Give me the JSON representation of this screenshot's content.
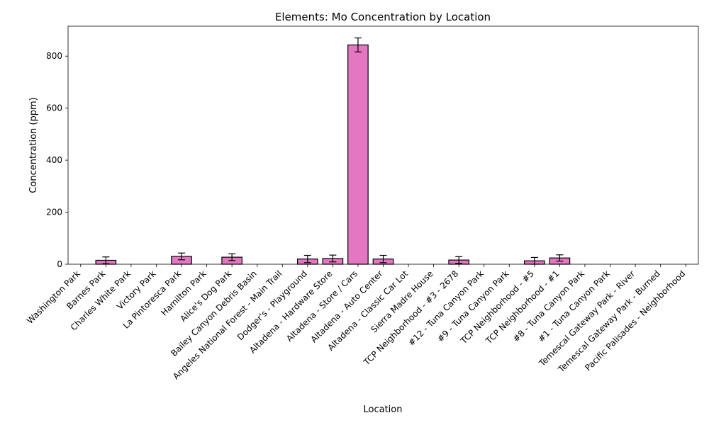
{
  "chart_data": {
    "type": "bar",
    "title": "Elements: Mo Concentration by Location",
    "xlabel": "Location",
    "ylabel": "Concentration (ppm)",
    "ylim": [
      0,
      915
    ],
    "yticks": [
      0,
      200,
      400,
      600,
      800
    ],
    "grid": false,
    "legend": "none",
    "bar_color": "#e377c2",
    "bar_edge_color": "#000000",
    "categories": [
      "Washington Park",
      "Barnes Park",
      "Charles White Park",
      "Victory Park",
      "La Pintoresca Park",
      "Hamilton Park",
      "Alice's Dog Park",
      "Bailey Canyon Debris Basin",
      "Angeles National Forest - Main Trail",
      "Dodger's - Playground",
      "Altadena - Hardware Store",
      "Altadena - Store / Cars",
      "Altadena - Auto Center",
      "Altadena - Classic Car Lot",
      "Sierra Madre House",
      "TCP Neighborhood - #3 - 2678",
      "#12 - Tuna Canyon Park",
      "#9 - Tuna Canyon Park",
      "TCP Neighborhood - #5",
      "TCP Neighborhood - #1",
      "#8 - Tuna Canyon Park",
      "#1 - Tuna Canyon Park",
      "Temescal Gateway Park - River",
      "Temescal Gateway Park - Burned",
      "Pacific Palisades - Neighborhood"
    ],
    "values": [
      0,
      15,
      0,
      0,
      30,
      0,
      27,
      0,
      0,
      20,
      22,
      843,
      20,
      0,
      0,
      16,
      0,
      0,
      13,
      24,
      0,
      0,
      0,
      0,
      0
    ],
    "errors": [
      0,
      13,
      0,
      0,
      13,
      0,
      13,
      0,
      0,
      14,
      13,
      27,
      14,
      0,
      0,
      13,
      0,
      0,
      13,
      12,
      0,
      0,
      0,
      0,
      0
    ]
  }
}
